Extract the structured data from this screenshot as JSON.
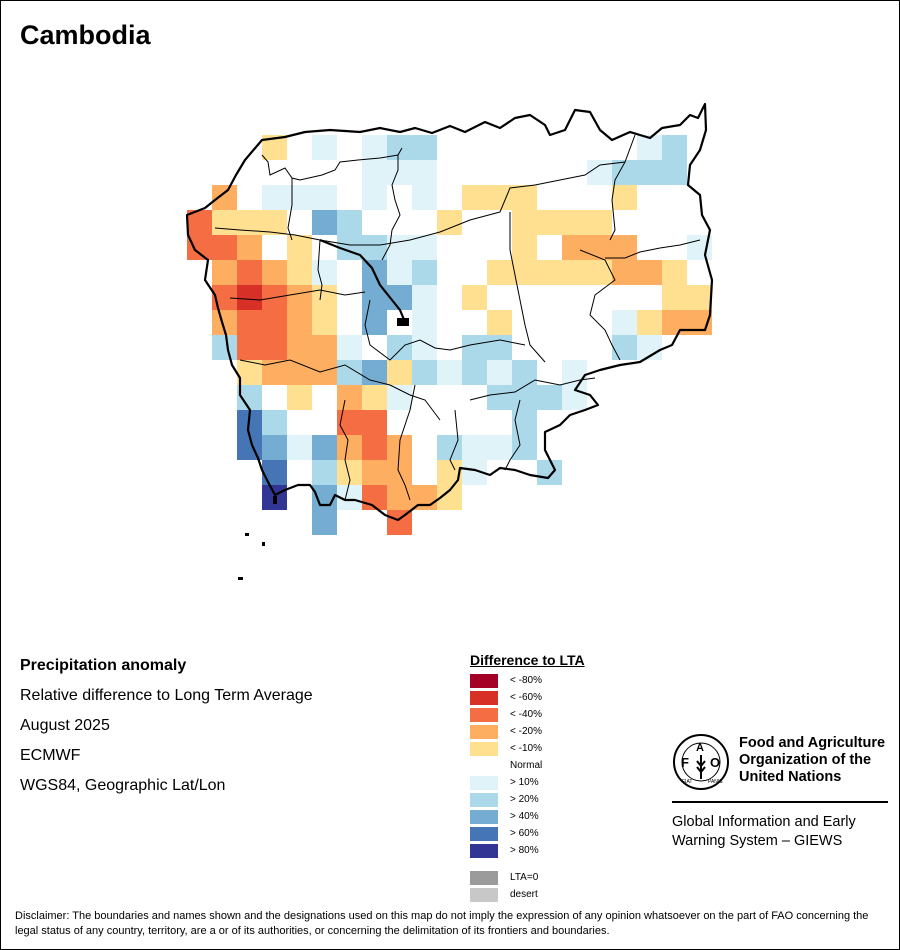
{
  "title": "Cambodia",
  "info": {
    "heading": "Precipitation anomaly",
    "line1": "Relative difference to Long Term Average",
    "line2": "August 2025",
    "line3": "ECMWF",
    "line4": "WGS84, Geographic Lat/Lon"
  },
  "legend": {
    "title": "Difference to LTA",
    "items": [
      {
        "key": "m80",
        "label": "< -80%",
        "color": "#a50026"
      },
      {
        "key": "m60",
        "label": "< -60%",
        "color": "#d73027"
      },
      {
        "key": "m40",
        "label": "< -40%",
        "color": "#f46d43"
      },
      {
        "key": "m20",
        "label": "< -20%",
        "color": "#fdae61"
      },
      {
        "key": "m10",
        "label": "< -10%",
        "color": "#fee090"
      },
      {
        "key": "n",
        "label": "Normal",
        "color": "#ffffff"
      },
      {
        "key": "p10",
        "label": "> 10%",
        "color": "#e0f3f8"
      },
      {
        "key": "p20",
        "label": "> 20%",
        "color": "#abd9e9"
      },
      {
        "key": "p40",
        "label": "> 40%",
        "color": "#74add1"
      },
      {
        "key": "p60",
        "label": "> 60%",
        "color": "#4575b4"
      },
      {
        "key": "p80",
        "label": "> 80%",
        "color": "#313695"
      }
    ],
    "extra": [
      {
        "key": "lta0",
        "label": "LTA=0",
        "color": "#9b9b9b"
      },
      {
        "key": "desert",
        "label": "desert",
        "color": "#c8c8c8"
      }
    ]
  },
  "grid": {
    "rows": [
      "...m10....p10..p10.p20.p20.........p10.p20.",
      "",
      "",
      "",
      "",
      "",
      "",
      "",
      "",
      "",
      "",
      "",
      "",
      "",
      "",
      ""
    ],
    "cells": [
      [
        ".",
        ".",
        ".",
        "m10",
        ".",
        "p10",
        ".",
        "p10",
        "p20",
        "p20",
        ".",
        ".",
        ".",
        ".",
        ".",
        ".",
        ".",
        ".",
        "p10",
        "p20",
        "."
      ],
      [
        ".",
        ".",
        ".",
        ".",
        ".",
        ".",
        ".",
        "p10",
        "p10",
        "p10",
        ".",
        ".",
        ".",
        ".",
        ".",
        ".",
        "p10",
        "p20",
        "p20",
        "p20",
        "."
      ],
      [
        ".",
        "m20",
        ".",
        "p10",
        "p10",
        "p10",
        ".",
        "p10",
        ".",
        "p10",
        ".",
        "m10",
        "m10",
        "m10",
        ".",
        ".",
        ".",
        "m10",
        ".",
        ".",
        "."
      ],
      [
        "m40",
        "m10",
        "m10",
        "m10",
        ".",
        "p40",
        "p20",
        ".",
        ".",
        ".",
        "m10",
        ".",
        ".",
        "m10",
        "m10",
        "m10",
        "m10",
        ".",
        ".",
        ".",
        "."
      ],
      [
        "m40",
        "m40",
        "m20",
        ".",
        "m10",
        ".",
        "p20",
        "p20",
        "p10",
        "p10",
        ".",
        ".",
        ".",
        "m10",
        ".",
        "m20",
        "m20",
        "m20",
        ".",
        ".",
        "p10"
      ],
      [
        ".",
        "m20",
        "m40",
        "m20",
        "m10",
        "p10",
        ".",
        "p40",
        "p10",
        "p20",
        ".",
        ".",
        "m10",
        "m10",
        "m10",
        "m10",
        "m10",
        "m20",
        "m20",
        "m10",
        "."
      ],
      [
        ".",
        "m40",
        "m60",
        "m40",
        "m20",
        "m10",
        ".",
        "p40",
        "p40",
        "p10",
        ".",
        "m10",
        ".",
        ".",
        ".",
        ".",
        ".",
        ".",
        ".",
        "m10",
        "m10"
      ],
      [
        ".",
        "m20",
        "m40",
        "m40",
        "m20",
        "m10",
        ".",
        "p40",
        ".",
        "p10",
        ".",
        ".",
        "m10",
        ".",
        ".",
        ".",
        ".",
        "p10",
        "m10",
        "m20",
        "m20"
      ],
      [
        ".",
        "p20",
        "m40",
        "m40",
        "m20",
        "m20",
        "p10",
        ".",
        "p20",
        "p10",
        ".",
        "p20",
        "p20",
        ".",
        ".",
        ".",
        ".",
        "p20",
        "p10",
        ".",
        "."
      ],
      [
        ".",
        ".",
        "m10",
        "m20",
        "m20",
        "m20",
        "p20",
        "p40",
        "m10",
        "p20",
        "p10",
        "p20",
        "p10",
        "p20",
        ".",
        "p10",
        ".",
        ".",
        ".",
        ".",
        "."
      ],
      [
        ".",
        ".",
        "p20",
        ".",
        "m10",
        ".",
        "m20",
        "m10",
        "p10",
        ".",
        ".",
        ".",
        "p20",
        "p20",
        "p20",
        "p10",
        ".",
        ".",
        ".",
        ".",
        "."
      ],
      [
        ".",
        ".",
        "p60",
        "p20",
        ".",
        ".",
        "m40",
        "m40",
        ".",
        ".",
        ".",
        ".",
        ".",
        "p20",
        ".",
        ".",
        ".",
        ".",
        ".",
        ".",
        "."
      ],
      [
        ".",
        ".",
        "p60",
        "p40",
        "p10",
        "p40",
        "m20",
        "m40",
        "m20",
        ".",
        "p20",
        "p10",
        "p10",
        "p20",
        ".",
        ".",
        ".",
        ".",
        ".",
        ".",
        "."
      ],
      [
        ".",
        ".",
        ".",
        "p60",
        ".",
        "p20",
        "m10",
        "m20",
        "m20",
        ".",
        "m10",
        "p10",
        ".",
        ".",
        "p20",
        ".",
        ".",
        ".",
        ".",
        ".",
        "."
      ],
      [
        ".",
        ".",
        ".",
        "p80",
        ".",
        "p40",
        "p10",
        "m40",
        "m20",
        "m20",
        "m10",
        ".",
        ".",
        ".",
        ".",
        ".",
        ".",
        ".",
        ".",
        ".",
        "."
      ],
      [
        ".",
        ".",
        ".",
        ".",
        ".",
        "p40",
        ".",
        ".",
        "m40",
        ".",
        ".",
        ".",
        ".",
        ".",
        ".",
        ".",
        ".",
        ".",
        ".",
        ".",
        "."
      ]
    ]
  },
  "logo": {
    "org_line1": "Food and Agriculture",
    "org_line2": "Organization of the",
    "org_line3": "United Nations",
    "emblem_letters": "FAO",
    "emblem_motto": "FIAT PANIS",
    "program_line1": "Global Information and Early",
    "program_line2": "Warning System – GIEWS"
  },
  "disclaimer": "Disclaimer: The boundaries and names shown and the designations used on this map do not imply the expression of any opinion whatsoever on the part of FAO concerning the legal status of any country, territory, are a or of its authorities, or concerning the delimitation of its frontiers and boundaries."
}
